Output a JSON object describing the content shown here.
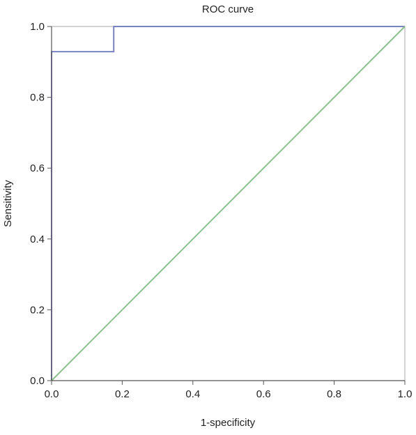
{
  "chart_data": {
    "type": "line",
    "title": "ROC curve",
    "xlabel": "1-specificity",
    "ylabel": "Sensitivity",
    "xlim": [
      0.0,
      1.0
    ],
    "ylim": [
      0.0,
      1.0
    ],
    "x_ticks": [
      "0.0",
      "0.2",
      "0.4",
      "0.6",
      "0.8",
      "1.0"
    ],
    "y_ticks": [
      "0.0",
      "0.2",
      "0.4",
      "0.6",
      "0.8",
      "1.0"
    ],
    "grid": false,
    "legend": "none",
    "series": [
      {
        "role": "roc",
        "color": "#7b82c0",
        "x": [
          0.0,
          0.0,
          0.176,
          0.176,
          1.0
        ],
        "y": [
          0.0,
          0.929,
          0.929,
          1.0,
          1.0
        ]
      },
      {
        "role": "reference",
        "color": "#8cc08c",
        "x": [
          0.0,
          1.0
        ],
        "y": [
          0.0,
          1.0
        ]
      }
    ]
  }
}
